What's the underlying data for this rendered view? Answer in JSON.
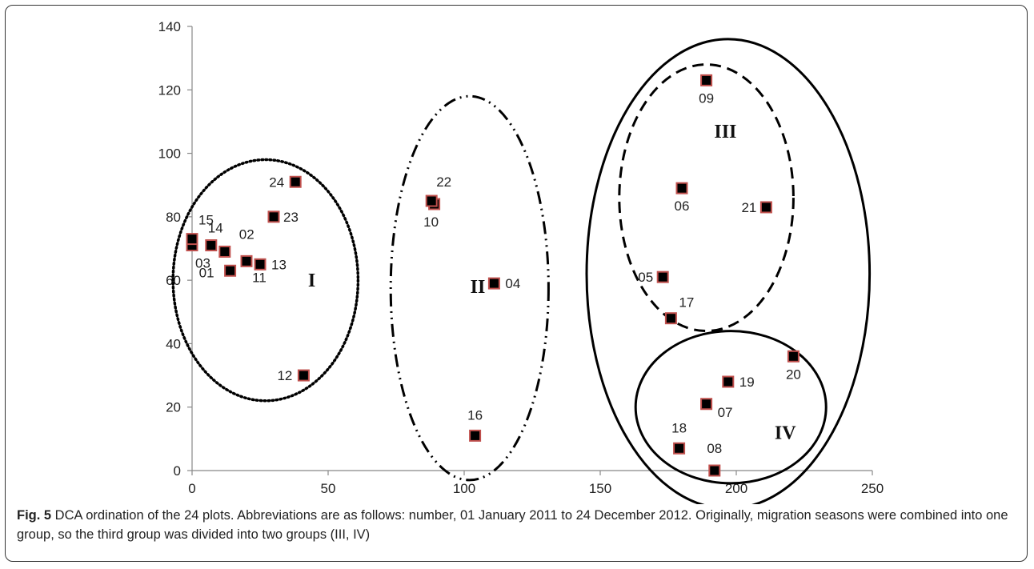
{
  "chart_data": {
    "type": "scatter",
    "title": "",
    "xlabel": "",
    "ylabel": "",
    "xlim": [
      0,
      250
    ],
    "ylim": [
      0,
      140
    ],
    "xticks": [
      "0",
      "50",
      "100",
      "150",
      "200",
      "250"
    ],
    "yticks": [
      "0",
      "20",
      "40",
      "60",
      "80",
      "100",
      "120",
      "140"
    ],
    "grid": false,
    "marker_color": "#000000",
    "marker_edge_color": "#c0504d",
    "points": [
      {
        "label": "01",
        "x": 14,
        "y": 63
      },
      {
        "label": "02",
        "x": 12,
        "y": 69
      },
      {
        "label": "03",
        "x": 0,
        "y": 71
      },
      {
        "label": "04",
        "x": 111,
        "y": 59
      },
      {
        "label": "05",
        "x": 173,
        "y": 61
      },
      {
        "label": "06",
        "x": 180,
        "y": 89
      },
      {
        "label": "07",
        "x": 189,
        "y": 21
      },
      {
        "label": "08",
        "x": 192,
        "y": 0
      },
      {
        "label": "09",
        "x": 189,
        "y": 123
      },
      {
        "label": "10",
        "x": 89,
        "y": 84
      },
      {
        "label": "11",
        "x": 20,
        "y": 66
      },
      {
        "label": "12",
        "x": 41,
        "y": 30
      },
      {
        "label": "13",
        "x": 25,
        "y": 65
      },
      {
        "label": "14",
        "x": 7,
        "y": 71
      },
      {
        "label": "15",
        "x": 0,
        "y": 73
      },
      {
        "label": "16",
        "x": 104,
        "y": 11
      },
      {
        "label": "17",
        "x": 176,
        "y": 48
      },
      {
        "label": "18",
        "x": 179,
        "y": 7
      },
      {
        "label": "19",
        "x": 197,
        "y": 28
      },
      {
        "label": "20",
        "x": 221,
        "y": 36
      },
      {
        "label": "21",
        "x": 211,
        "y": 83
      },
      {
        "label": "22",
        "x": 88,
        "y": 85
      },
      {
        "label": "23",
        "x": 30,
        "y": 80
      },
      {
        "label": "24",
        "x": 38,
        "y": 91
      }
    ],
    "groups": [
      {
        "name": "I",
        "cx": 27,
        "cy": 60,
        "rx": 34,
        "ry": 38,
        "line_style": "dotted"
      },
      {
        "name": "II",
        "cx": 102,
        "cy": 57.5,
        "rx": 29,
        "ry": 60.5,
        "line_style": "dash-dot-dot"
      },
      {
        "name": "III",
        "cx": 189,
        "cy": 86,
        "rx": 32,
        "ry": 42,
        "line_style": "dashed"
      },
      {
        "name": "IV",
        "cx": 198,
        "cy": 20,
        "rx": 35,
        "ry": 24,
        "line_style": "solid"
      },
      {
        "name": "",
        "cx": 197,
        "cy": 62,
        "rx": 52,
        "ry": 74,
        "line_style": "solid"
      }
    ]
  },
  "caption": {
    "figure_label": "Fig. 5",
    "text": " DCA ordination of the 24 plots. Abbreviations are as follows: number, 01 January 2011 to 24 December 2012. Originally, migration seasons were combined into one group, so the third group was divided into two groups (III, IV)"
  }
}
